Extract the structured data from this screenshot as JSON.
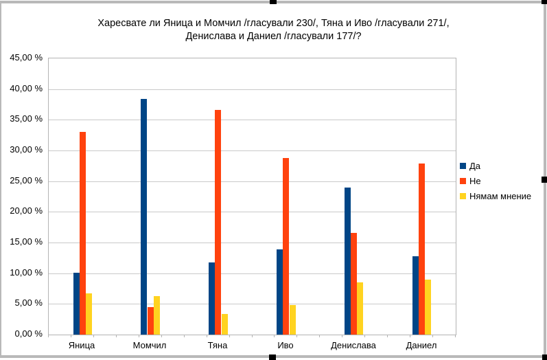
{
  "chart_data": {
    "type": "bar",
    "title_lines": [
      "Харесвате ли Яница и Момчил /гласували 230/, Тяна и Иво /гласували 271/,",
      "Денислава и Даниел /гласували 177/?"
    ],
    "categories": [
      "Яница",
      "Момчил",
      "Тяна",
      "Иво",
      "Денислава",
      "Даниел"
    ],
    "series": [
      {
        "name": "Да",
        "color": "#004586",
        "values": [
          10.1,
          38.4,
          11.8,
          13.9,
          23.9,
          12.8
        ]
      },
      {
        "name": "Не",
        "color": "#FF420E",
        "values": [
          33.0,
          4.5,
          36.6,
          28.8,
          16.6,
          27.9
        ]
      },
      {
        "name": "Нямам мнение",
        "color": "#FFD320",
        "values": [
          6.7,
          6.3,
          3.4,
          4.8,
          8.5,
          9.0
        ]
      }
    ],
    "y_axis": {
      "min": 0,
      "max": 45,
      "step": 5,
      "tick_labels": [
        "45,00 %",
        "40,00 %",
        "35,00 %",
        "30,00 %",
        "25,00 %",
        "20,00 %",
        "15,00 %",
        "10,00 %",
        "5,00 %",
        "0,00 %"
      ]
    },
    "legend_position": "right",
    "grid": true,
    "colors": {
      "grid_line": "#c9c9c9",
      "plot_border": "#b3b3b3",
      "selection_border": "#b9b9b9",
      "selection_handle": "#000000"
    }
  }
}
